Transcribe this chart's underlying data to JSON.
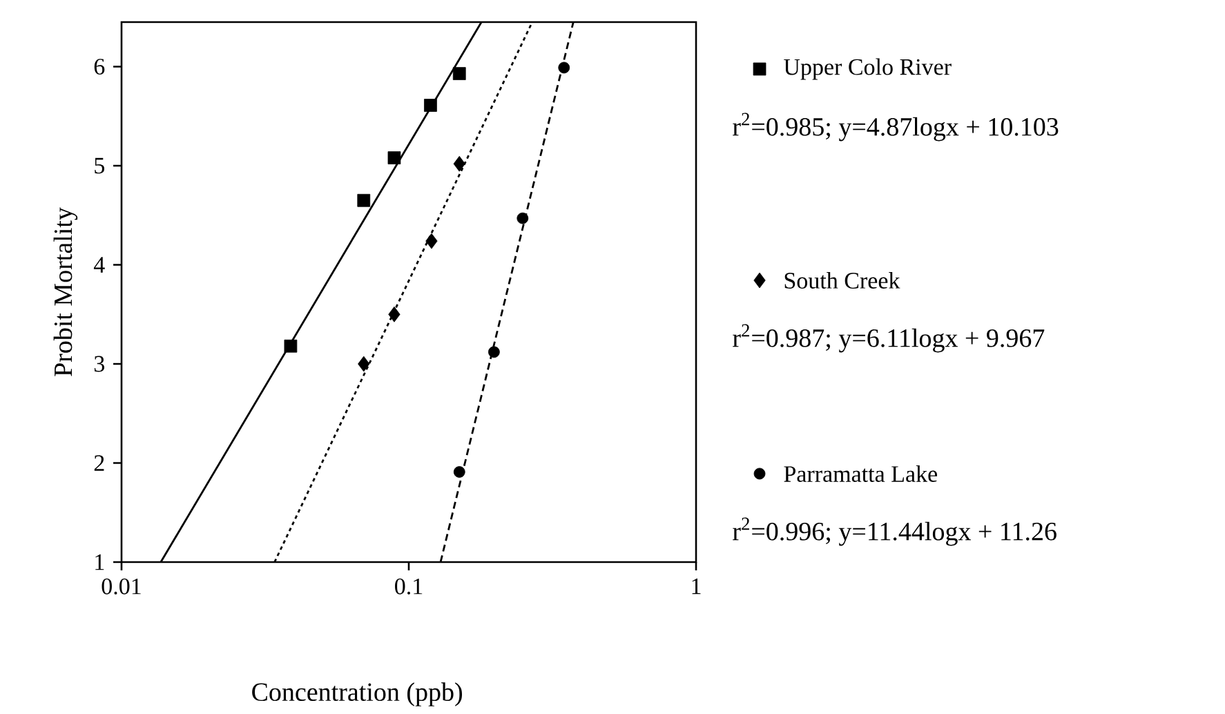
{
  "chart_data": {
    "type": "scatter",
    "xlabel": "Concentration (ppb)",
    "ylabel": "Probit Mortality",
    "log": "x",
    "xlim": [
      0.01,
      1
    ],
    "xticks": [
      0.01,
      0.1,
      1
    ],
    "ylim": [
      1,
      6.45
    ],
    "yticks": [
      1,
      2,
      3,
      4,
      5,
      6
    ],
    "legend": "right",
    "annotations": [
      "r$^{2}$=0.985; y=4.87logx + 10.103",
      "r$^{2}$=0.987; y=6.11logx + 9.967",
      "r$^{2}$=0.996; y=11.44logx + 11.26"
    ],
    "series": [
      {
        "name": "Upper  Colo River",
        "marker": "square",
        "color": "#000000",
        "x": [
          0.0388,
          0.0697,
          0.089,
          0.119,
          0.15
        ],
        "values": [
          3.18,
          4.65,
          5.08,
          5.61,
          5.93
        ]
      },
      {
        "name": "South Creek",
        "marker": "diamond",
        "color": "#000000",
        "x": [
          0.0697,
          0.089,
          0.12,
          0.15
        ],
        "values": [
          3.0,
          3.5,
          4.24,
          5.02
        ]
      },
      {
        "name": "Parramatta Lake",
        "marker": "circle",
        "color": "#000000",
        "x": [
          0.15,
          0.198,
          0.249,
          0.347
        ],
        "values": [
          1.91,
          3.12,
          4.47,
          5.99
        ]
      },
      {
        "type": "line",
        "line_style": "solid",
        "color": "#000000",
        "x": [
          0.0137,
          0.179
        ],
        "values": [
          1,
          6.45
        ]
      },
      {
        "type": "line",
        "line_style": "dotted",
        "color": "#000000",
        "x": [
          0.0341,
          0.269
        ],
        "values": [
          1,
          6.45
        ]
      },
      {
        "type": "line",
        "line_style": "dashed",
        "color": "#000000",
        "x": [
          0.129,
          0.374
        ],
        "values": [
          1,
          6.45
        ]
      }
    ]
  }
}
